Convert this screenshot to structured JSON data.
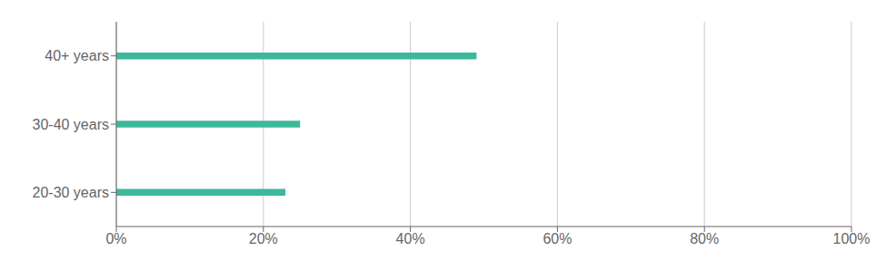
{
  "chart_data": {
    "type": "bar",
    "orientation": "horizontal",
    "categories": [
      "20-30 years",
      "30-40 years",
      "40+ years"
    ],
    "values": [
      23,
      25,
      49
    ],
    "color": "#3db89b",
    "xlim": [
      0,
      100
    ],
    "xticks": [
      {
        "value": 0,
        "label": "0%"
      },
      {
        "value": 20,
        "label": "20%"
      },
      {
        "value": 40,
        "label": "40%"
      },
      {
        "value": 60,
        "label": "60%"
      },
      {
        "value": 80,
        "label": "80%"
      },
      {
        "value": 100,
        "label": "100%"
      }
    ],
    "grid": true
  }
}
